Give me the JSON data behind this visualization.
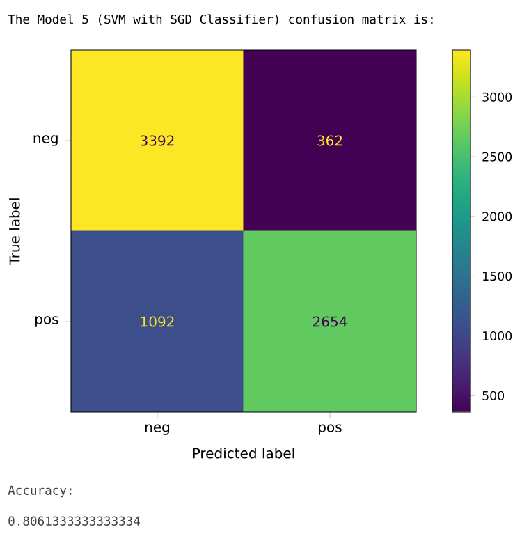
{
  "chart_data": {
    "type": "heatmap",
    "title": "The Model 5 (SVM with SGD Classifier) confusion matrix is:",
    "xlabel": "Predicted label",
    "ylabel": "True label",
    "categories": [
      "neg",
      "pos"
    ],
    "y_categories": [
      "neg",
      "pos"
    ],
    "cells": [
      [
        3392,
        362
      ],
      [
        1092,
        2654
      ]
    ],
    "data_labels": true,
    "clim": [
      362,
      3392
    ],
    "cticks": [
      500,
      1000,
      1500,
      2000,
      2500,
      3000
    ],
    "annotations": [
      "Accuracy:",
      "0.8061333333333334"
    ]
  }
}
